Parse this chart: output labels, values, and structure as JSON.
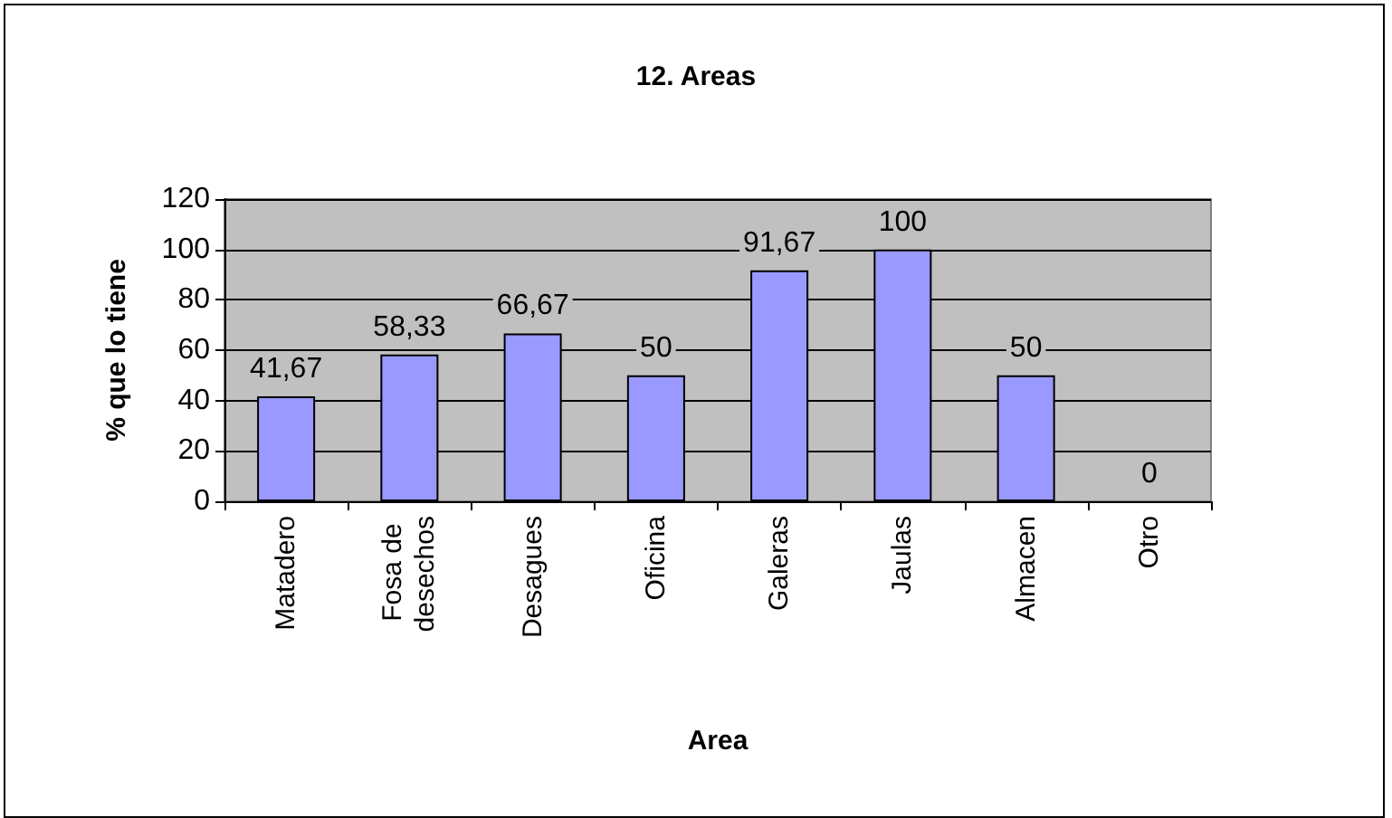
{
  "chart_data": {
    "type": "bar",
    "title": "12. Areas",
    "xlabel": "Area",
    "ylabel": "% que lo tiene",
    "categories": [
      "Matadero",
      "Fosa de desechos",
      "Desagues",
      "Oficina",
      "Galeras",
      "Jaulas",
      "Almacen",
      "Otro"
    ],
    "values": [
      41.67,
      58.33,
      66.67,
      50,
      91.67,
      100,
      50,
      0
    ],
    "value_labels": [
      "41,67",
      "58,33",
      "66,67",
      "50",
      "91,67",
      "100",
      "50",
      "0"
    ],
    "color": "#9999ff",
    "ylim": [
      0,
      120
    ],
    "yticks": [
      0,
      20,
      40,
      60,
      80,
      100,
      120
    ],
    "grid": "y"
  }
}
